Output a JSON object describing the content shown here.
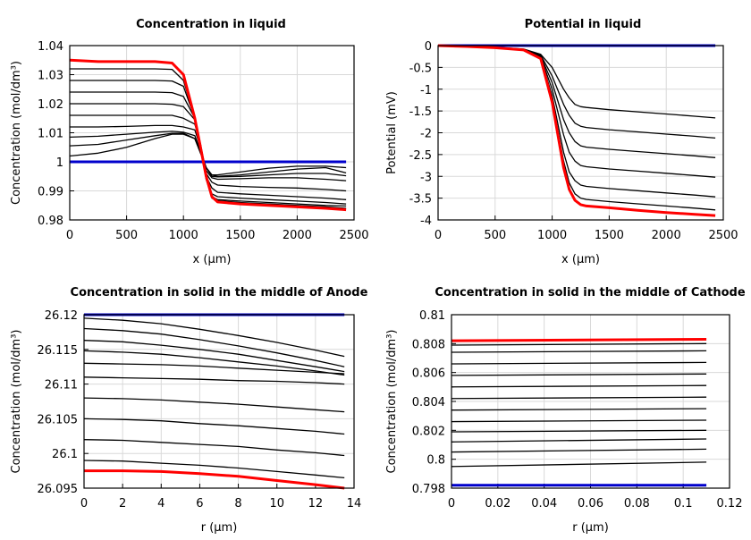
{
  "chart_data": [
    {
      "type": "line",
      "title": "Concentration in liquid",
      "xlabel": "x (µm)",
      "ylabel": "Concentration (mol/dm³)",
      "xlim": [
        0,
        2500
      ],
      "ylim": [
        0.98,
        1.04
      ],
      "xticks": [
        "0",
        "500",
        "1000",
        "1500",
        "2000",
        "2500"
      ],
      "yticks": [
        "0.98",
        "0.99",
        "1",
        "1.01",
        "1.02",
        "1.03",
        "1.04"
      ],
      "grid": true,
      "x": [
        0,
        250,
        500,
        750,
        900,
        1000,
        1100,
        1150,
        1200,
        1250,
        1300,
        1500,
        1750,
        2000,
        2250,
        2430
      ],
      "series": [
        {
          "color": "#000000",
          "values": [
            1.002,
            1.003,
            1.005,
            1.008,
            1.0095,
            1.0095,
            1.008,
            1.003,
            0.998,
            0.9955,
            0.9955,
            0.9965,
            0.9978,
            0.9985,
            0.9985,
            0.998
          ]
        },
        {
          "color": "#000000",
          "values": [
            1.0055,
            1.006,
            1.0075,
            1.009,
            1.0098,
            1.0098,
            1.008,
            1.003,
            0.998,
            0.9955,
            0.995,
            0.9955,
            0.9965,
            0.9975,
            0.998,
            0.9962
          ]
        },
        {
          "color": "#000000",
          "values": [
            1.0085,
            1.0088,
            1.0095,
            1.0102,
            1.0105,
            1.0102,
            1.009,
            1.004,
            0.998,
            0.995,
            0.9948,
            0.995,
            0.9955,
            0.996,
            0.996,
            0.9952
          ]
        },
        {
          "color": "#000000",
          "values": [
            1.012,
            1.012,
            1.0122,
            1.0125,
            1.0125,
            1.012,
            1.011,
            1.005,
            0.997,
            0.9945,
            0.994,
            0.9942,
            0.9945,
            0.9945,
            0.994,
            0.9935
          ]
        },
        {
          "color": "#000000",
          "values": [
            1.016,
            1.016,
            1.016,
            1.016,
            1.016,
            1.015,
            1.013,
            1.006,
            0.996,
            0.993,
            0.992,
            0.9915,
            0.9912,
            0.991,
            0.9905,
            0.99
          ]
        },
        {
          "color": "#000000",
          "values": [
            1.02,
            1.02,
            1.02,
            1.02,
            1.0198,
            1.019,
            1.0145,
            1.006,
            0.995,
            0.991,
            0.9895,
            0.989,
            0.9885,
            0.988,
            0.9875,
            0.987
          ]
        },
        {
          "color": "#000000",
          "values": [
            1.024,
            1.024,
            1.024,
            1.024,
            1.0238,
            1.0225,
            1.015,
            1.006,
            0.994,
            0.989,
            0.988,
            0.9875,
            0.987,
            0.9865,
            0.986,
            0.9855
          ]
        },
        {
          "color": "#000000",
          "values": [
            1.028,
            1.028,
            1.028,
            1.028,
            1.0278,
            1.026,
            1.015,
            1.005,
            0.994,
            0.988,
            0.987,
            0.9865,
            0.986,
            0.9855,
            0.985,
            0.9848
          ]
        },
        {
          "color": "#000000",
          "values": [
            1.032,
            1.032,
            1.032,
            1.032,
            1.0318,
            1.028,
            1.015,
            1.005,
            0.9945,
            0.9875,
            0.9866,
            0.986,
            0.9855,
            0.985,
            0.9845,
            0.984
          ]
        },
        {
          "color": "#0000cc",
          "values": [
            1,
            1,
            1,
            1,
            1,
            1,
            1,
            1,
            1,
            1,
            1,
            1,
            1,
            1,
            1,
            1
          ]
        },
        {
          "color": "#ff0000",
          "values": [
            1.035,
            1.0345,
            1.0345,
            1.0345,
            1.034,
            1.03,
            1.015,
            1.005,
            0.995,
            0.988,
            0.9862,
            0.9855,
            0.985,
            0.9845,
            0.984,
            0.9835
          ]
        }
      ]
    },
    {
      "type": "line",
      "title": "Potential in liquid",
      "xlabel": "x (µm)",
      "ylabel": "Potential (mV)",
      "xlim": [
        0,
        2500
      ],
      "ylim": [
        -4,
        0
      ],
      "xticks": [
        "0",
        "500",
        "1000",
        "1500",
        "2000",
        "2500"
      ],
      "yticks": [
        "-4",
        "-3.5",
        "-3",
        "-2.5",
        "-2",
        "-1.5",
        "-1",
        "-0.5",
        "0"
      ],
      "grid": true,
      "x": [
        0,
        250,
        500,
        750,
        900,
        1000,
        1100,
        1150,
        1200,
        1250,
        1300,
        1500,
        1750,
        2000,
        2250,
        2430
      ],
      "series": [
        {
          "color": "#000000",
          "values": [
            0,
            -0.02,
            -0.04,
            -0.08,
            -0.2,
            -0.5,
            -1.0,
            -1.2,
            -1.35,
            -1.4,
            -1.42,
            -1.47,
            -1.52,
            -1.57,
            -1.62,
            -1.66
          ]
        },
        {
          "color": "#000000",
          "values": [
            0,
            -0.02,
            -0.05,
            -0.09,
            -0.22,
            -0.7,
            -1.35,
            -1.6,
            -1.78,
            -1.85,
            -1.88,
            -1.93,
            -1.98,
            -2.03,
            -2.08,
            -2.12
          ]
        },
        {
          "color": "#000000",
          "values": [
            0,
            -0.02,
            -0.05,
            -0.09,
            -0.24,
            -0.85,
            -1.7,
            -2.0,
            -2.2,
            -2.3,
            -2.33,
            -2.38,
            -2.43,
            -2.48,
            -2.53,
            -2.57
          ]
        },
        {
          "color": "#000000",
          "values": [
            0,
            -0.02,
            -0.05,
            -0.1,
            -0.26,
            -1.0,
            -2.05,
            -2.45,
            -2.65,
            -2.75,
            -2.78,
            -2.83,
            -2.88,
            -2.93,
            -2.98,
            -3.02
          ]
        },
        {
          "color": "#000000",
          "values": [
            0,
            -0.02,
            -0.05,
            -0.1,
            -0.28,
            -1.15,
            -2.45,
            -2.9,
            -3.1,
            -3.2,
            -3.23,
            -3.28,
            -3.33,
            -3.38,
            -3.43,
            -3.47
          ]
        },
        {
          "color": "#000000",
          "values": [
            0,
            -0.02,
            -0.05,
            -0.1,
            -0.29,
            -1.25,
            -2.65,
            -3.15,
            -3.4,
            -3.5,
            -3.53,
            -3.58,
            -3.63,
            -3.68,
            -3.73,
            -3.77
          ]
        },
        {
          "color": "#0000cc",
          "values": [
            0,
            0,
            0,
            0,
            0,
            0,
            0,
            0,
            0,
            0,
            0,
            0,
            0,
            0,
            0,
            0
          ]
        },
        {
          "color": "#ff0000",
          "values": [
            0,
            -0.02,
            -0.05,
            -0.1,
            -0.3,
            -1.3,
            -2.8,
            -3.3,
            -3.55,
            -3.65,
            -3.68,
            -3.72,
            -3.78,
            -3.83,
            -3.87,
            -3.9
          ]
        }
      ]
    },
    {
      "type": "line",
      "title": "Concentration in solid in the middle of Anode",
      "xlabel": "r (µm)",
      "ylabel": "Concentration (mol/dm³)",
      "xlim": [
        0,
        14
      ],
      "ylim": [
        26.095,
        26.12
      ],
      "xticks": [
        "0",
        "2",
        "4",
        "6",
        "8",
        "10",
        "12",
        "14"
      ],
      "yticks": [
        "26.095",
        "26.1",
        "26.105",
        "26.11",
        "26.115",
        "26.12"
      ],
      "grid": true,
      "x": [
        0,
        2,
        4,
        6,
        8,
        10,
        12,
        13.5
      ],
      "series": [
        {
          "color": "#000000",
          "values": [
            26.1195,
            26.1192,
            26.1187,
            26.1179,
            26.117,
            26.116,
            26.1149,
            26.114
          ]
        },
        {
          "color": "#000000",
          "values": [
            26.118,
            26.1177,
            26.1172,
            26.1164,
            26.1155,
            26.1145,
            26.1134,
            26.1125
          ]
        },
        {
          "color": "#000000",
          "values": [
            26.1163,
            26.1161,
            26.1156,
            26.115,
            26.1143,
            26.1134,
            26.1125,
            26.1118
          ]
        },
        {
          "color": "#000000",
          "values": [
            26.1148,
            26.1146,
            26.1143,
            26.1138,
            26.1132,
            26.1126,
            26.1119,
            26.1113
          ]
        },
        {
          "color": "#000000",
          "values": [
            26.113,
            26.1129,
            26.1128,
            26.1126,
            26.1123,
            26.112,
            26.1117,
            26.1115
          ]
        },
        {
          "color": "#000000",
          "values": [
            26.111,
            26.1109,
            26.1108,
            26.1107,
            26.1105,
            26.1104,
            26.1102,
            26.11
          ]
        },
        {
          "color": "#000000",
          "values": [
            26.108,
            26.1079,
            26.1077,
            26.1074,
            26.1071,
            26.1067,
            26.1063,
            26.106
          ]
        },
        {
          "color": "#000000",
          "values": [
            26.105,
            26.1049,
            26.1047,
            26.1043,
            26.104,
            26.1036,
            26.1032,
            26.1028
          ]
        },
        {
          "color": "#000000",
          "values": [
            26.102,
            26.1019,
            26.1016,
            26.1013,
            26.101,
            26.1005,
            26.1001,
            26.0997
          ]
        },
        {
          "color": "#000000",
          "values": [
            26.099,
            26.0989,
            26.0986,
            26.0983,
            26.0979,
            26.0974,
            26.0969,
            26.0965
          ]
        },
        {
          "color": "#0000cc",
          "values": [
            26.12,
            26.12,
            26.12,
            26.12,
            26.12,
            26.12,
            26.12,
            26.12
          ]
        },
        {
          "color": "#ff0000",
          "values": [
            26.0975,
            26.0975,
            26.0974,
            26.0971,
            26.0967,
            26.0961,
            26.0955,
            26.095
          ]
        }
      ]
    },
    {
      "type": "line",
      "title": "Concentration in solid in the middle of Cathode",
      "xlabel": "r (µm)",
      "ylabel": "Concentration (mol/dm³)",
      "xlim": [
        0,
        0.12
      ],
      "ylim": [
        0.798,
        0.81
      ],
      "xticks": [
        "0",
        "0.02",
        "0.04",
        "0.06",
        "0.08",
        "0.1",
        "0.12"
      ],
      "yticks": [
        "0.798",
        "0.8",
        "0.802",
        "0.804",
        "0.806",
        "0.808",
        "0.81"
      ],
      "grid": true,
      "x": [
        0,
        0.11
      ],
      "series": [
        {
          "color": "#000000",
          "values": [
            0.7995,
            0.7998
          ]
        },
        {
          "color": "#000000",
          "values": [
            0.8005,
            0.8007
          ]
        },
        {
          "color": "#000000",
          "values": [
            0.8012,
            0.8014
          ]
        },
        {
          "color": "#000000",
          "values": [
            0.8019,
            0.802
          ]
        },
        {
          "color": "#000000",
          "values": [
            0.8026,
            0.8027
          ]
        },
        {
          "color": "#000000",
          "values": [
            0.8034,
            0.8035
          ]
        },
        {
          "color": "#000000",
          "values": [
            0.8042,
            0.8043
          ]
        },
        {
          "color": "#000000",
          "values": [
            0.805,
            0.8051
          ]
        },
        {
          "color": "#000000",
          "values": [
            0.8058,
            0.8059
          ]
        },
        {
          "color": "#000000",
          "values": [
            0.8066,
            0.8067
          ]
        },
        {
          "color": "#000000",
          "values": [
            0.8074,
            0.8075
          ]
        },
        {
          "color": "#000000",
          "values": [
            0.8079,
            0.808
          ]
        },
        {
          "color": "#0000cc",
          "values": [
            0.7982,
            0.7982
          ]
        },
        {
          "color": "#ff0000",
          "values": [
            0.8082,
            0.8083
          ]
        }
      ]
    }
  ]
}
